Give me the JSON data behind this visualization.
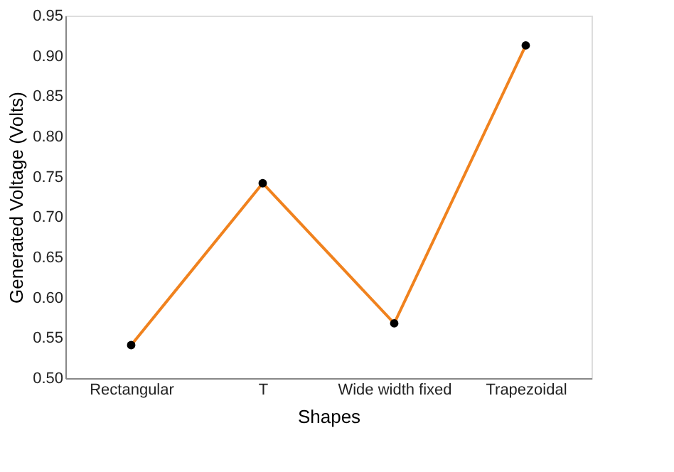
{
  "chart_data": {
    "type": "line",
    "xlabel": "Shapes",
    "ylabel": "Generated Voltage (Volts)",
    "categories": [
      "Rectangular",
      "T",
      "Wide width fixed",
      "Trapezoidal"
    ],
    "series": [
      {
        "color": "#f0821e",
        "values": [
          0.541,
          0.742,
          0.568,
          0.913
        ]
      }
    ],
    "ylim": [
      0.5,
      0.95
    ],
    "yticks": [
      {
        "value": 0.5,
        "label": "0.50"
      },
      0.55,
      {
        "value": 0.6,
        "label": "0.60"
      },
      0.65,
      {
        "value": 0.7,
        "label": "0.70"
      },
      0.75,
      {
        "value": 0.8,
        "label": "0.80"
      },
      0.85,
      {
        "value": 0.9,
        "label": "0.90"
      },
      0.95
    ],
    "marker": "circle",
    "grid": false
  }
}
